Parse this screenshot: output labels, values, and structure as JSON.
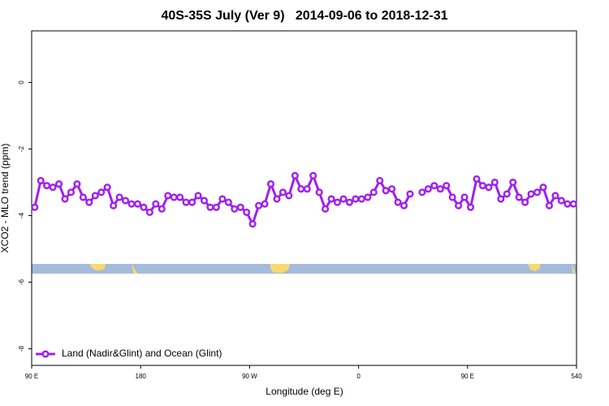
{
  "chart_data": {
    "type": "line",
    "title": "40S-35S July (Ver 9)   2014-09-06 to 2018-12-31",
    "x_label": "Longitude (deg E)",
    "y_label": "XCO2 - MLO trend (ppm)",
    "x": [
      92.5,
      97.5,
      102.5,
      107.5,
      112.5,
      117.5,
      122.5,
      127.5,
      132.5,
      137.5,
      142.5,
      147.5,
      152.5,
      157.5,
      162.5,
      167.5,
      172.5,
      177.5,
      182.5,
      187.5,
      192.5,
      197.5,
      202.5,
      207.5,
      212.5,
      217.5,
      222.5,
      227.5,
      232.5,
      237.5,
      242.5,
      247.5,
      252.5,
      257.5,
      262.5,
      267.5,
      272.5,
      277.5,
      282.5,
      287.5,
      292.5,
      297.5,
      302.5,
      307.5,
      312.5,
      317.5,
      322.5,
      327.5,
      332.5,
      337.5,
      342.5,
      347.5,
      352.5,
      357.5,
      362.5,
      367.5,
      372.5,
      377.5,
      382.5,
      387.5,
      392.5,
      397.5,
      402.5,
      407.5,
      412.5,
      417.5,
      422.5,
      427.5,
      432.5,
      437.5,
      442.5,
      447.5,
      452.5,
      457.5,
      462.5,
      467.5,
      472.5,
      477.5,
      482.5,
      487.5,
      492.5,
      497.5,
      502.5,
      507.5,
      512.5,
      517.5,
      522.5,
      527.5,
      532.5,
      537.5
    ],
    "series": [
      {
        "name": "Land (Nadir&Glint) and Ocean (Glint)",
        "color": "#a020f0",
        "values": [
          -3.75,
          -2.95,
          -3.1,
          -3.15,
          -3.05,
          -3.5,
          -3.3,
          -3.05,
          -3.45,
          -3.6,
          -3.4,
          -3.3,
          -3.15,
          -3.7,
          -3.45,
          -3.55,
          -3.65,
          -3.65,
          -3.75,
          -3.9,
          -3.65,
          -3.8,
          -3.4,
          -3.45,
          -3.45,
          -3.6,
          -3.6,
          -3.4,
          -3.55,
          -3.75,
          -3.75,
          -3.5,
          -3.6,
          -3.8,
          -3.75,
          -3.9,
          -4.25,
          -3.7,
          -3.65,
          -3.05,
          -3.5,
          -3.3,
          -3.4,
          -2.8,
          -3.2,
          -3.2,
          -2.8,
          -3.3,
          -3.8,
          -3.5,
          -3.6,
          -3.5,
          -3.6,
          -3.5,
          -3.5,
          -3.45,
          -3.3,
          -2.95,
          -3.25,
          -3.2,
          -3.6,
          -3.7,
          -3.35,
          null,
          -3.3,
          -3.2,
          -3.1,
          -3.2,
          -3.1,
          -3.45,
          -3.7,
          -3.45,
          -3.75,
          -2.9,
          -3.1,
          -3.15,
          -3.0,
          -3.5,
          -3.35,
          -3.0,
          -3.45,
          -3.6,
          -3.35,
          -3.3,
          -3.15,
          -3.7,
          -3.4,
          -3.55,
          -3.65,
          -3.65
        ]
      }
    ],
    "xlim": [
      90,
      540
    ],
    "xticks": [
      {
        "value": 90,
        "label": "90 E"
      },
      180,
      {
        "value": 270,
        "label": "90 W"
      },
      {
        "value": 360,
        "label": "0"
      },
      {
        "value": 450,
        "label": "90 E"
      },
      540
    ],
    "ylim": [
      -8.5,
      1.55
    ],
    "yticks": [
      0,
      -2,
      -4,
      -6,
      -8
    ],
    "legend": "bottom-left"
  }
}
